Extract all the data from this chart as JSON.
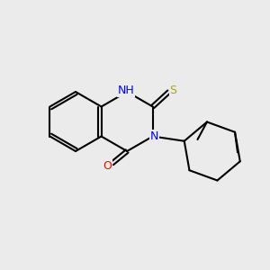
{
  "background_color": "#ebebeb",
  "figsize": [
    3.0,
    3.0
  ],
  "dpi": 100,
  "bond_color": "#000000",
  "bond_width": 1.5,
  "colors": {
    "N": "#0000ff",
    "O": "#ff0000",
    "S": "#aaaa00",
    "H": "#555555",
    "C": "#000000"
  },
  "font_size": 9
}
